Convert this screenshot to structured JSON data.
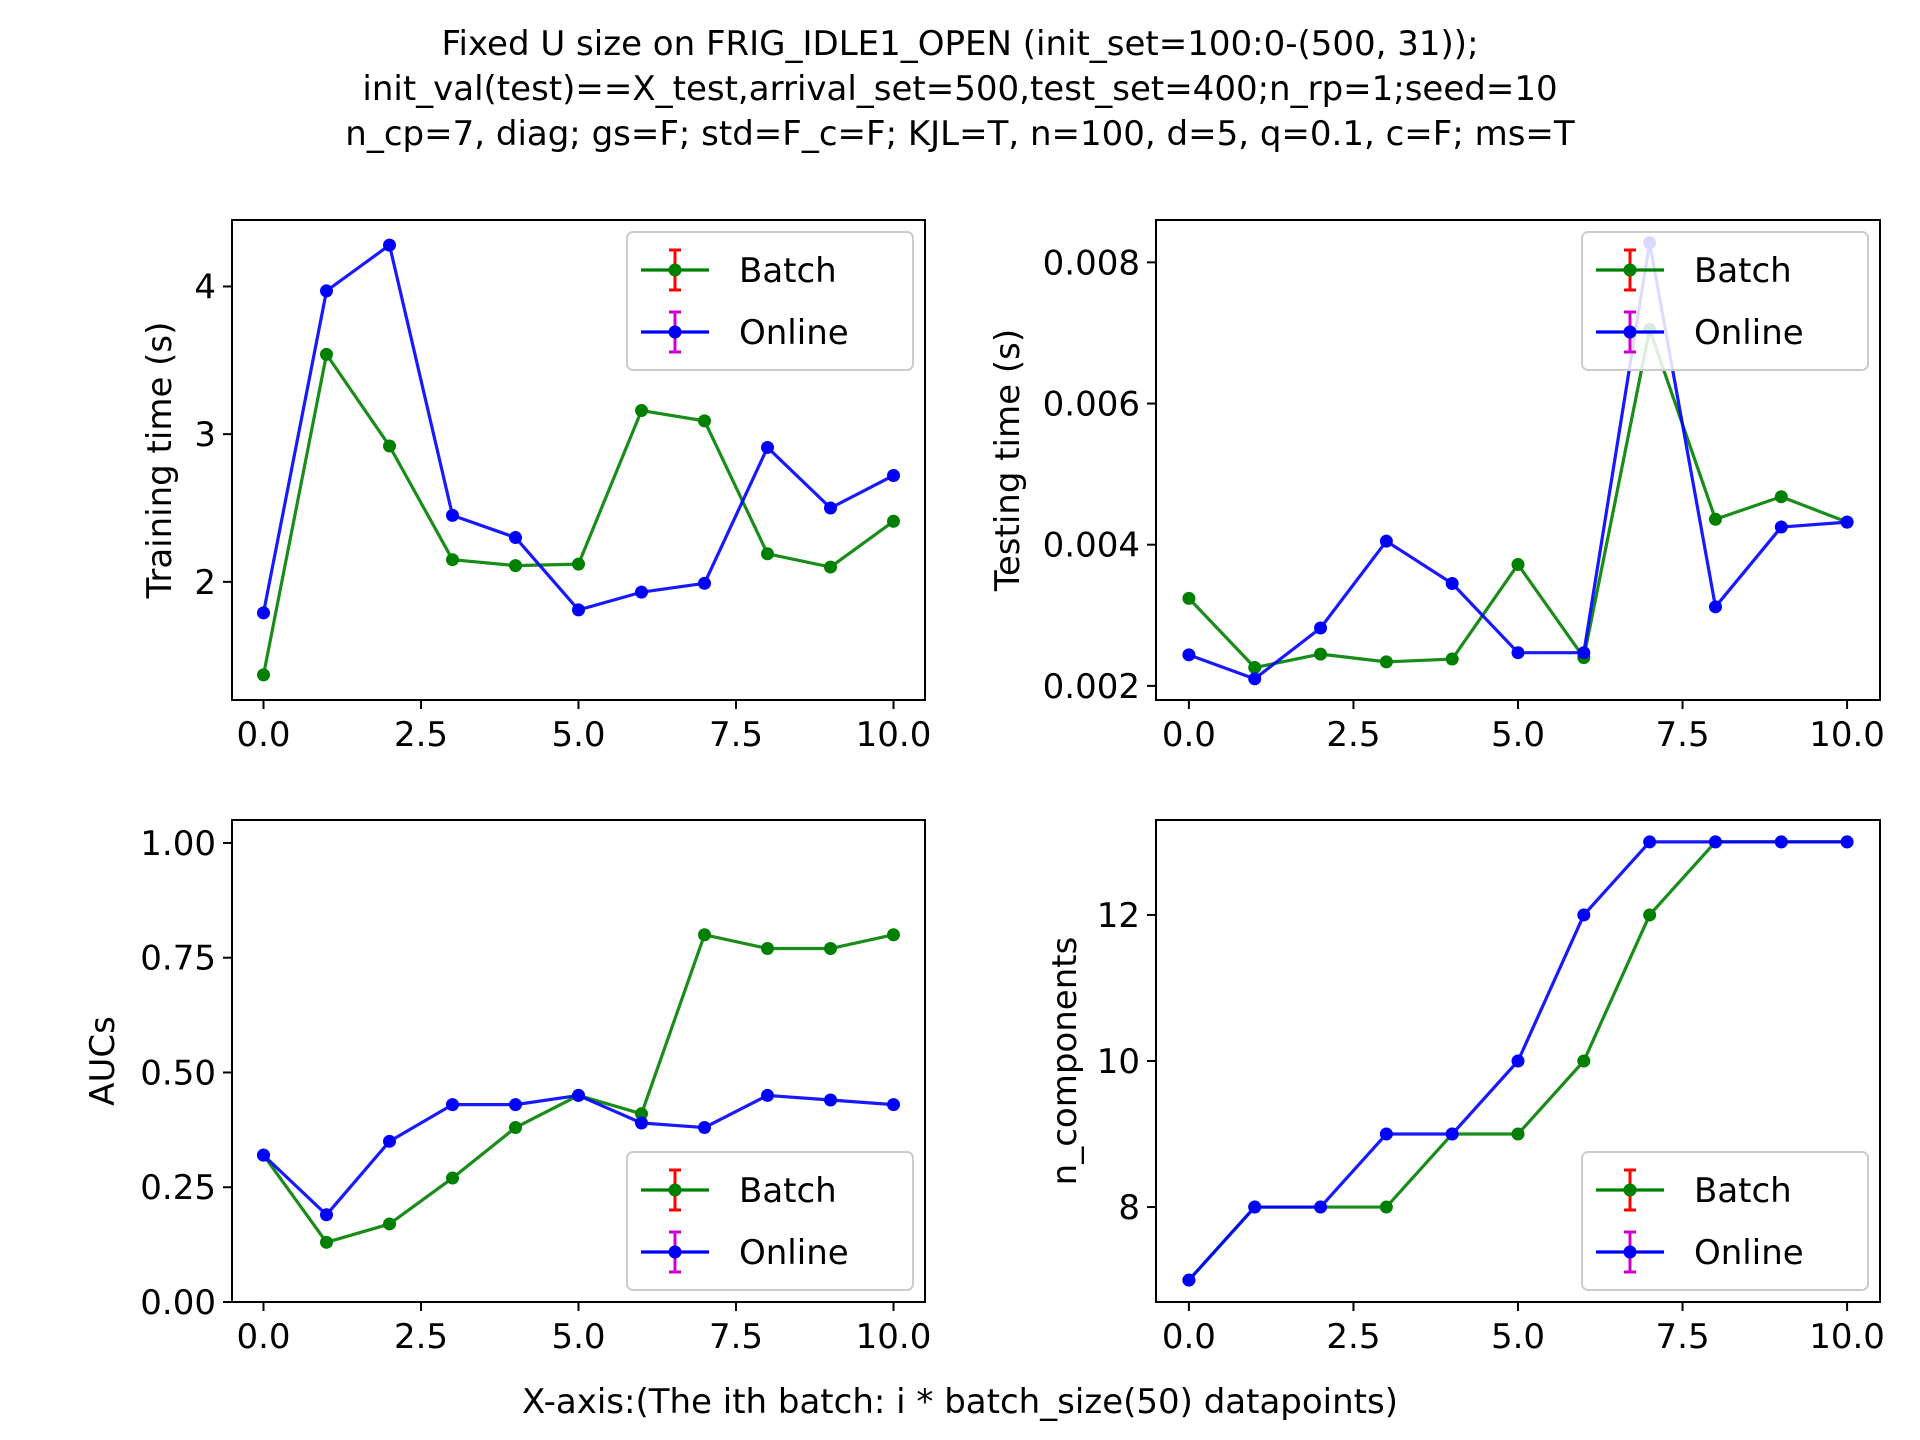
{
  "title_lines": [
    "Fixed U size on FRIG_IDLE1_OPEN (init_set=100:0-(500, 31));",
    "init_val(test)==X_test,arrival_set=500,test_set=400;n_rp=1;seed=10",
    "n_cp=7, diag; gs=F; std=F_c=F; KJL=T, n=100, d=5, q=0.1, c=F; ms=T"
  ],
  "shared_xlabel": "X-axis:(The ith batch: i * batch_size(50) datapoints)",
  "colors": {
    "batch": "#008000",
    "online": "#0000ff",
    "batch_err": "#ff0000",
    "online_err": "#cc00cc"
  },
  "chart_data": [
    {
      "type": "line",
      "id": "training",
      "ylabel": "Training time (s)",
      "x": [
        0,
        1,
        2,
        3,
        4,
        5,
        6,
        7,
        8,
        9,
        10
      ],
      "xlim": [
        -0.5,
        10.5
      ],
      "ylim": [
        1.2,
        4.45
      ],
      "xticks": [
        "0.0",
        "2.5",
        "5.0",
        "7.5",
        "10.0"
      ],
      "xtick_values": [
        0,
        2.5,
        5,
        7.5,
        10
      ],
      "yticks": [
        "2",
        "3",
        "4"
      ],
      "ytick_values": [
        2,
        3,
        4
      ],
      "legend": "top-right",
      "series": [
        {
          "name": "Batch",
          "values": [
            1.37,
            3.54,
            2.92,
            2.15,
            2.11,
            2.12,
            3.16,
            3.09,
            2.19,
            2.1,
            2.41
          ]
        },
        {
          "name": "Online",
          "values": [
            1.79,
            3.97,
            4.28,
            2.45,
            2.3,
            1.81,
            1.93,
            1.99,
            2.91,
            2.5,
            2.72
          ]
        }
      ]
    },
    {
      "type": "line",
      "id": "testing",
      "ylabel": "Testing time (s)",
      "x": [
        0,
        1,
        2,
        3,
        4,
        5,
        6,
        7,
        8,
        9,
        10
      ],
      "xlim": [
        -0.5,
        10.5
      ],
      "ylim": [
        0.0018,
        0.0086
      ],
      "xticks": [
        "0.0",
        "2.5",
        "5.0",
        "7.5",
        "10.0"
      ],
      "xtick_values": [
        0,
        2.5,
        5,
        7.5,
        10
      ],
      "yticks": [
        "0.002",
        "0.004",
        "0.006",
        "0.008"
      ],
      "ytick_values": [
        0.002,
        0.004,
        0.006,
        0.008
      ],
      "legend": "top-right",
      "series": [
        {
          "name": "Batch",
          "values": [
            0.00324,
            0.00226,
            0.00245,
            0.00234,
            0.00238,
            0.00372,
            0.0024,
            0.00705,
            0.00436,
            0.00468,
            0.00432
          ]
        },
        {
          "name": "Online",
          "values": [
            0.00244,
            0.0021,
            0.00282,
            0.00405,
            0.00345,
            0.00247,
            0.00247,
            0.00828,
            0.00312,
            0.00425,
            0.00432
          ]
        }
      ]
    },
    {
      "type": "line",
      "id": "aucs",
      "ylabel": "AUCs",
      "x": [
        0,
        1,
        2,
        3,
        4,
        5,
        6,
        7,
        8,
        9,
        10
      ],
      "xlim": [
        -0.5,
        10.5
      ],
      "ylim": [
        0,
        1.05
      ],
      "xticks": [
        "0.0",
        "2.5",
        "5.0",
        "7.5",
        "10.0"
      ],
      "xtick_values": [
        0,
        2.5,
        5,
        7.5,
        10
      ],
      "yticks": [
        "0.00",
        "0.25",
        "0.50",
        "0.75",
        "1.00"
      ],
      "ytick_values": [
        0,
        0.25,
        0.5,
        0.75,
        1.0
      ],
      "legend": "bottom-right",
      "series": [
        {
          "name": "Batch",
          "values": [
            0.32,
            0.13,
            0.17,
            0.27,
            0.38,
            0.45,
            0.41,
            0.8,
            0.77,
            0.77,
            0.8
          ]
        },
        {
          "name": "Online",
          "values": [
            0.32,
            0.19,
            0.35,
            0.43,
            0.43,
            0.45,
            0.39,
            0.38,
            0.45,
            0.44,
            0.43
          ]
        }
      ]
    },
    {
      "type": "line",
      "id": "ncomponents",
      "ylabel": "n_components",
      "x": [
        0,
        1,
        2,
        3,
        4,
        5,
        6,
        7,
        8,
        9,
        10
      ],
      "xlim": [
        -0.5,
        10.5
      ],
      "ylim": [
        6.7,
        13.3
      ],
      "xticks": [
        "0.0",
        "2.5",
        "5.0",
        "7.5",
        "10.0"
      ],
      "xtick_values": [
        0,
        2.5,
        5,
        7.5,
        10
      ],
      "yticks": [
        "8",
        "10",
        "12"
      ],
      "ytick_values": [
        8,
        10,
        12
      ],
      "legend": "bottom-right",
      "series": [
        {
          "name": "Batch",
          "values": [
            7,
            8,
            8,
            8,
            9,
            9,
            10,
            12,
            13,
            13,
            13
          ]
        },
        {
          "name": "Online",
          "values": [
            7,
            8,
            8,
            9,
            9,
            10,
            12,
            13,
            13,
            13,
            13
          ]
        }
      ]
    }
  ]
}
